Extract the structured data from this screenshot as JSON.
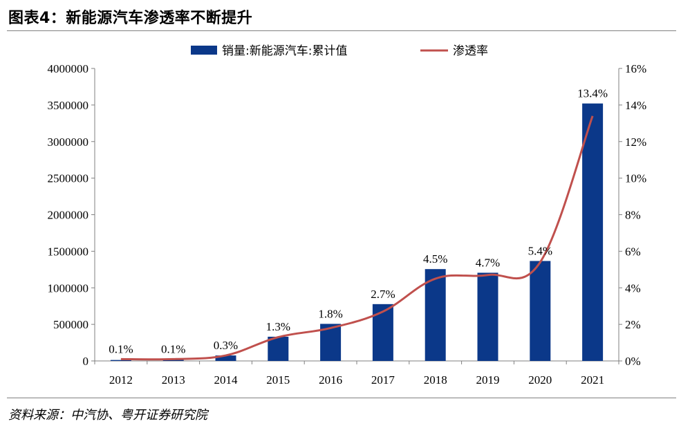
{
  "figure": {
    "title": "图表4：新能源汽车渗透率不断提升",
    "source": "资料来源：中汽协、粤开证券研究院"
  },
  "colors": {
    "bar": "#0b3889",
    "line": "#c0504d",
    "axis": "#7f7f7f"
  },
  "chart_data": {
    "type": "bar",
    "categories": [
      "2012",
      "2013",
      "2014",
      "2015",
      "2016",
      "2017",
      "2018",
      "2019",
      "2020",
      "2021"
    ],
    "series": [
      {
        "name": "销量:新能源汽车:累计值",
        "kind": "bar",
        "axis": "left",
        "values": [
          12800,
          17600,
          74800,
          331100,
          507000,
          777000,
          1256000,
          1206000,
          1367000,
          3521000
        ]
      },
      {
        "name": "渗透率",
        "kind": "line",
        "axis": "right",
        "values": [
          0.1,
          0.1,
          0.3,
          1.3,
          1.8,
          2.7,
          4.5,
          4.7,
          5.4,
          13.4
        ],
        "data_labels": [
          "0.1%",
          "0.1%",
          "0.3%",
          "1.3%",
          "1.8%",
          "2.7%",
          "4.5%",
          "4.7%",
          "5.4%",
          "13.4%"
        ]
      }
    ],
    "y_left": {
      "lim": [
        0,
        4000000
      ],
      "ticks": [
        0,
        500000,
        1000000,
        1500000,
        2000000,
        2500000,
        3000000,
        3500000,
        4000000
      ],
      "tick_labels": [
        "0",
        "500000",
        "1000000",
        "1500000",
        "2000000",
        "2500000",
        "3000000",
        "3500000",
        "4000000"
      ]
    },
    "y_right": {
      "lim": [
        0,
        16
      ],
      "ticks": [
        0,
        2,
        4,
        6,
        8,
        10,
        12,
        14,
        16
      ],
      "tick_labels": [
        "0%",
        "2%",
        "4%",
        "6%",
        "8%",
        "10%",
        "12%",
        "14%",
        "16%"
      ]
    },
    "legend": {
      "placement": "top-center",
      "entries": [
        "销量:新能源汽车:累计值",
        "渗透率"
      ]
    },
    "grid": false
  }
}
